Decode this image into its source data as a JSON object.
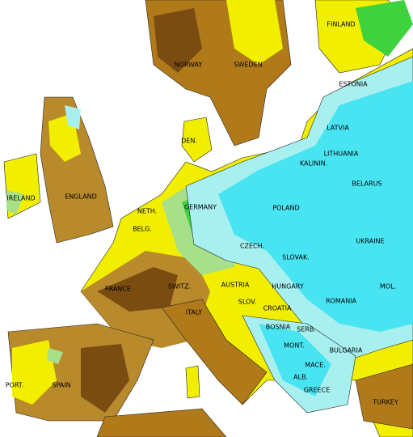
{
  "labels": [
    "FINLAND",
    "NORWAY",
    "SWEDEN",
    "ESTONIA",
    "LATVIA",
    "LITHUANIA",
    "KALININ.",
    "DEN.",
    "IRELAND",
    "ENGLAND",
    "BELARUS",
    "POLAND",
    "NETH.",
    "GERMANY",
    "BELG.",
    "CZECH.",
    "UKRAINE",
    "SLOVAK.",
    "FRANCE",
    "SWITZ.",
    "AUSTRIA",
    "HUNGARY",
    "MOL.",
    "ROMANIA",
    "SLOV.",
    "CROATIA",
    "ITALY",
    "BOSNIA",
    "SERB.",
    "MONT.",
    "BULGARIA",
    "MACE.",
    "ALB.",
    "GREECE",
    "PORT.",
    "SPAIN",
    "TURKEY"
  ]
}
